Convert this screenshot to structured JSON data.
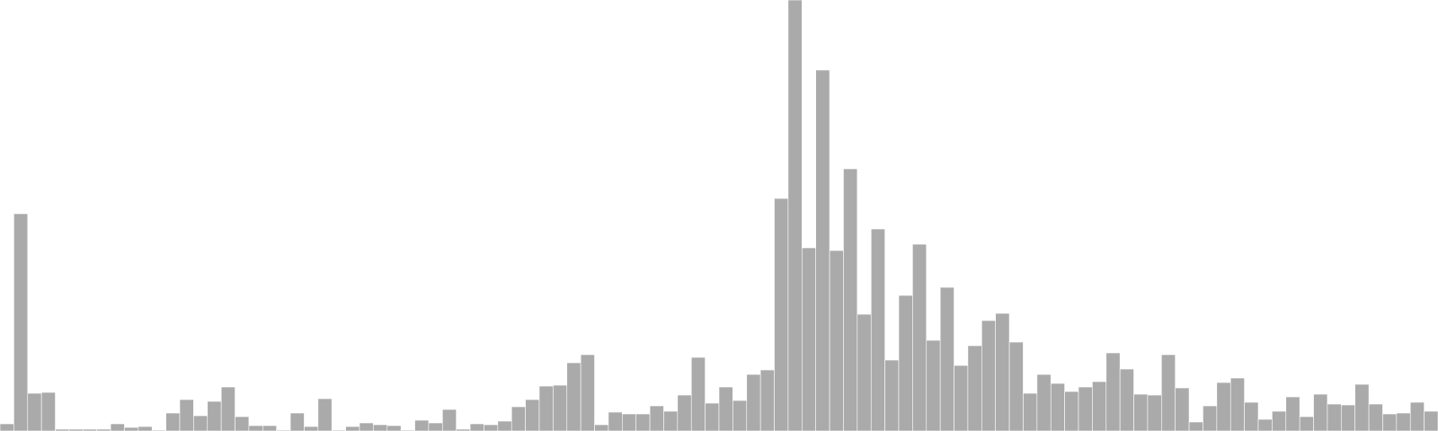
{
  "chart_data": {
    "type": "bar",
    "title": "",
    "xlabel": "",
    "ylabel": "",
    "grid": false,
    "legend": "none",
    "colors": {
      "bar": "#aaaaaa",
      "bar_edge": "#ffffff",
      "background": "#ffffff"
    },
    "ylim": [
      0,
      480
    ],
    "values": [
      8,
      242,
      42,
      43,
      2,
      2,
      2,
      2,
      8,
      4,
      5,
      1,
      20,
      35,
      17,
      33,
      49,
      16,
      6,
      6,
      1,
      20,
      5,
      36,
      1,
      5,
      9,
      7,
      6,
      1,
      12,
      9,
      24,
      2,
      8,
      7,
      11,
      27,
      35,
      50,
      51,
      76,
      85,
      7,
      21,
      19,
      19,
      28,
      22,
      40,
      82,
      31,
      49,
      34,
      63,
      68,
      259,
      480,
      204,
      402,
      201,
      292,
      130,
      225,
      79,
      151,
      208,
      101,
      160,
      73,
      95,
      123,
      131,
      99,
      42,
      63,
      53,
      44,
      49,
      55,
      87,
      69,
      41,
      40,
      85,
      48,
      10,
      28,
      54,
      59,
      32,
      13,
      22,
      38,
      16,
      41,
      30,
      29,
      52,
      30,
      19,
      20,
      32,
      22
    ]
  }
}
